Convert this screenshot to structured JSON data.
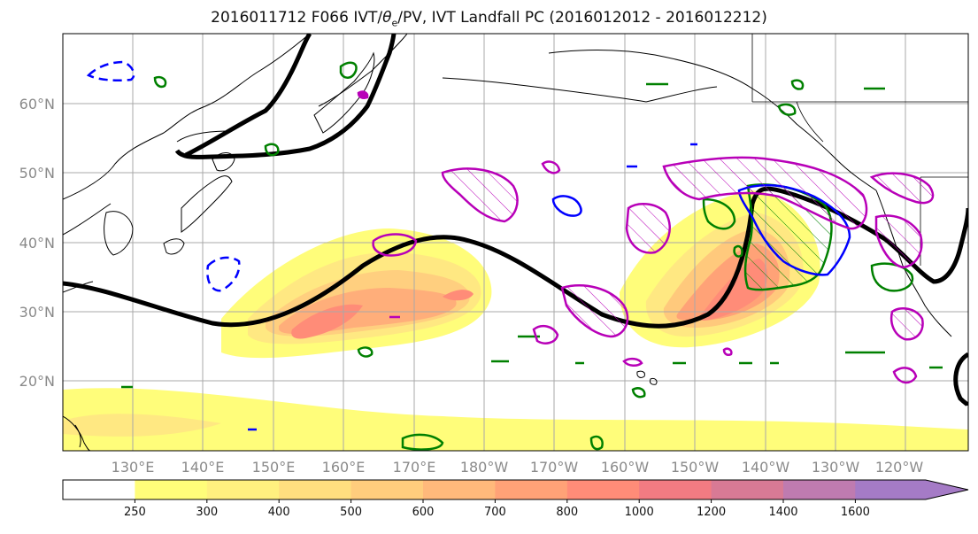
{
  "title": {
    "prefix": "2016011712 F066 IVT/",
    "theta": "θ",
    "theta_sub": "e",
    "suffix": "/PV, IVT Landfall PC (2016012012 - 2016012212)"
  },
  "map": {
    "lat_labels": [
      "60°N",
      "50°N",
      "40°N",
      "30°N",
      "20°N"
    ],
    "lon_labels": [
      "130°E",
      "140°E",
      "150°E",
      "160°E",
      "170°E",
      "180°W",
      "170°W",
      "160°W",
      "150°W",
      "140°W",
      "130°W",
      "120°W"
    ],
    "gridlines": true
  },
  "colorbar": {
    "ticks": [
      "250",
      "300",
      "400",
      "500",
      "600",
      "700",
      "800",
      "1000",
      "1200",
      "1400",
      "1600"
    ],
    "colors": [
      "#ffffff",
      "#fffd7a",
      "#fff07f",
      "#ffdf7f",
      "#ffcd7d",
      "#ffb97b",
      "#ffa277",
      "#ff8c78",
      "#f27b82",
      "#d87a95",
      "#bf7bb0",
      "#a57bc6"
    ]
  },
  "contour_colors": {
    "theta_e_line": "#000000",
    "ivt_pc_positive": "#008000",
    "ivt_pc_negative": "#0000ff",
    "pv": "#b800b8"
  }
}
